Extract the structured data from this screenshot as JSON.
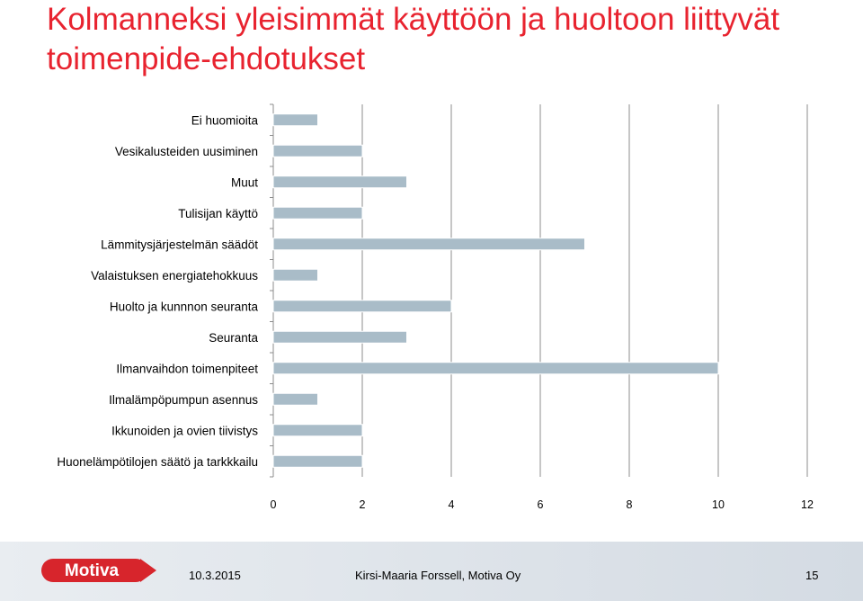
{
  "title": "Kolmanneksi yleisimmät käyttöön ja huoltoon liittyvät toimenpide-ehdotukset",
  "chart_data": {
    "type": "bar",
    "orientation": "horizontal",
    "categories": [
      "Ei huomioita",
      "Vesikalusteiden uusiminen",
      "Muut",
      "Tulisijan käyttö",
      "Lämmitysjärjestelmän säädöt",
      "Valaistuksen energiatehokkuus",
      "Huolto ja kunnnon seuranta",
      "Seuranta",
      "Ilmanvaihdon toimenpiteet",
      "Ilmalämpöpumpun asennus",
      "Ikkunoiden ja ovien tiivistys",
      "Huonelämpötilojen säätö ja tarkkkailu"
    ],
    "values": [
      1,
      2,
      3,
      2,
      7,
      1,
      4,
      3,
      10,
      1,
      2,
      2
    ],
    "xlim": [
      0,
      12
    ],
    "xticks": [
      0,
      2,
      4,
      6,
      8,
      10,
      12
    ],
    "grid": true,
    "bar_color": "#a9bcc8"
  },
  "footer": {
    "logo_text": "Motiva",
    "date": "10.3.2015",
    "author": "Kirsi-Maaria Forssell, Motiva Oy",
    "page": "15"
  },
  "colors": {
    "title": "#e8232f",
    "logo": "#d7252c"
  }
}
